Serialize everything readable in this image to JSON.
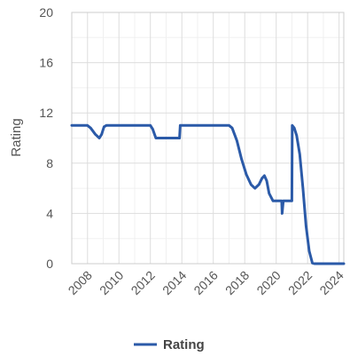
{
  "chart_data": {
    "type": "line",
    "ylabel": "Rating",
    "xlabel": "",
    "xlim": [
      2007.0,
      2024.3
    ],
    "ylim": [
      0,
      20
    ],
    "y_ticks": [
      0,
      4,
      8,
      12,
      16,
      20
    ],
    "x_ticks": [
      2008,
      2010,
      2012,
      2014,
      2016,
      2018,
      2020,
      2022,
      2024
    ],
    "grid": true,
    "legend_position": "bottom",
    "series": [
      {
        "name": "Rating",
        "color": "#2b5aa8",
        "points": [
          [
            2007.0,
            11
          ],
          [
            2008.0,
            11
          ],
          [
            2008.2,
            10.8
          ],
          [
            2008.5,
            10.3
          ],
          [
            2008.75,
            10.0
          ],
          [
            2008.9,
            10.3
          ],
          [
            2009.05,
            10.9
          ],
          [
            2009.2,
            11
          ],
          [
            2012.0,
            11
          ],
          [
            2012.15,
            10.7
          ],
          [
            2012.35,
            10
          ],
          [
            2013.85,
            10
          ],
          [
            2013.9,
            11
          ],
          [
            2017.0,
            11
          ],
          [
            2017.2,
            10.8
          ],
          [
            2017.5,
            9.8
          ],
          [
            2017.8,
            8.3
          ],
          [
            2018.1,
            7.1
          ],
          [
            2018.4,
            6.3
          ],
          [
            2018.65,
            6.0
          ],
          [
            2018.9,
            6.3
          ],
          [
            2019.1,
            6.8
          ],
          [
            2019.25,
            7.0
          ],
          [
            2019.4,
            6.6
          ],
          [
            2019.55,
            5.6
          ],
          [
            2019.8,
            5.0
          ],
          [
            2020.35,
            5.0
          ],
          [
            2020.38,
            4.0
          ],
          [
            2020.45,
            5.0
          ],
          [
            2021.0,
            5.0
          ],
          [
            2021.02,
            11
          ],
          [
            2021.15,
            10.8
          ],
          [
            2021.3,
            10.2
          ],
          [
            2021.5,
            8.7
          ],
          [
            2021.7,
            6.0
          ],
          [
            2021.9,
            3.0
          ],
          [
            2022.1,
            1.0
          ],
          [
            2022.3,
            0.05
          ],
          [
            2022.45,
            0
          ],
          [
            2024.3,
            0
          ]
        ]
      }
    ]
  }
}
